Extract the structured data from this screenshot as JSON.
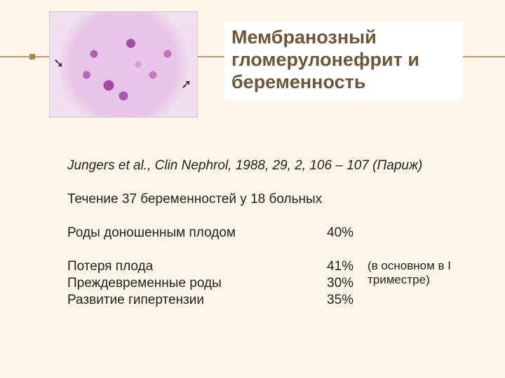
{
  "title": "Мембранозный гломерулонефрит и беременность",
  "citation": "Jungers et al., Clin Nephrol, 1988, 29, 2, 106 – 107 (Париж)",
  "subtitle": "Течение 37 беременностей у 18 больных",
  "rows": [
    {
      "label": "Роды доношенным плодом",
      "value": "40%",
      "note": ""
    },
    {
      "label": "Потеря плода",
      "value": "41%",
      "note": "(в основном в I триместре)"
    },
    {
      "label": "Преждевременные роды",
      "value": "30%",
      "note": ""
    },
    {
      "label": "Развитие гипертензии",
      "value": "35%",
      "note": ""
    }
  ],
  "colors": {
    "background": "#fdf6e8",
    "title_text": "#6f553a",
    "title_bg": "#ffffff",
    "rule": "#b89b6b",
    "body_text": "#222222"
  }
}
